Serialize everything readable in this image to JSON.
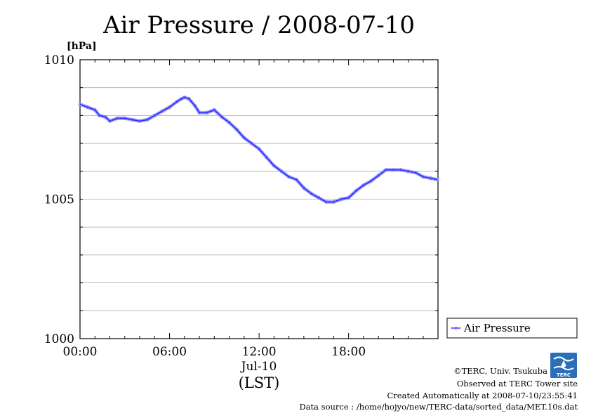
{
  "chart_data": {
    "type": "line",
    "title": "Air Pressure / 2008-07-10",
    "yunit": "[hPa]",
    "ylim": [
      1000,
      1010
    ],
    "y_ticks": [
      "1000",
      "1005",
      "1010"
    ],
    "x_ticks": [
      "00:00",
      "06:00",
      "12:00",
      "18:00"
    ],
    "x_tick_hours": [
      0,
      6,
      12,
      18
    ],
    "xlim_hours": [
      0,
      23.99
    ],
    "date_label": "Jul-10",
    "xlabel": "(LST)",
    "grid": true,
    "legend_position": "right",
    "series": [
      {
        "name": "Air Pressure",
        "color": "#3030ff",
        "x_hours": [
          0,
          0.5,
          1,
          1.3,
          1.7,
          2,
          2.5,
          3,
          3.5,
          4,
          4.5,
          5,
          5.5,
          6,
          6.5,
          6.8,
          7,
          7.3,
          7.7,
          8,
          8.5,
          9,
          9.5,
          10,
          10.5,
          11,
          11.5,
          12,
          12.5,
          13,
          13.5,
          14,
          14.5,
          15,
          15.5,
          16,
          16.5,
          17,
          17.5,
          18,
          18.5,
          19,
          19.5,
          20,
          20.5,
          21,
          21.5,
          22,
          22.5,
          23,
          23.5,
          23.95
        ],
        "values": [
          1008.4,
          1008.3,
          1008.2,
          1008.0,
          1007.95,
          1007.8,
          1007.9,
          1007.9,
          1007.85,
          1007.8,
          1007.85,
          1008.0,
          1008.15,
          1008.3,
          1008.5,
          1008.6,
          1008.65,
          1008.6,
          1008.35,
          1008.1,
          1008.1,
          1008.2,
          1007.95,
          1007.75,
          1007.5,
          1007.2,
          1007.0,
          1006.8,
          1006.5,
          1006.2,
          1006.0,
          1005.8,
          1005.7,
          1005.4,
          1005.2,
          1005.05,
          1004.9,
          1004.9,
          1005.0,
          1005.05,
          1005.3,
          1005.5,
          1005.65,
          1005.85,
          1006.05,
          1006.05,
          1006.05,
          1006.0,
          1005.95,
          1005.8,
          1005.75,
          1005.7
        ]
      }
    ]
  },
  "footer": {
    "copyright": "©TERC, Univ. Tsukuba",
    "observed": "Observed at TERC Tower site",
    "created": "Created Automatically at 2008-07-10/23:55:41",
    "source": "Data source : /home/hojyo/new/TERC-data/sorted_data/MET.10s.dat",
    "logo_text": "TERC"
  }
}
